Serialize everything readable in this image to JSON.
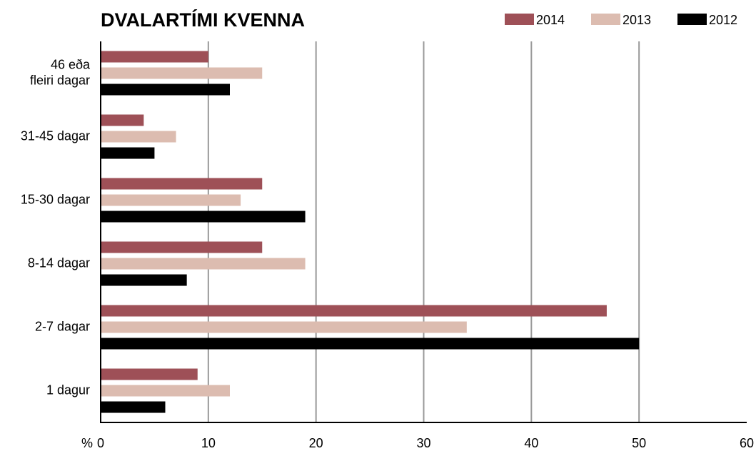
{
  "chart_data": {
    "type": "hbar",
    "title": "DVALARTÍMI KVENNA",
    "categories": [
      "46 eða fleiri dagar",
      "31-45 dagar",
      "15-30 dagar",
      "8-14 dagar",
      "2-7 dagar",
      "1 dagur"
    ],
    "series": [
      {
        "name": "2014",
        "color": "#9e5057",
        "values": [
          10,
          4,
          15,
          15,
          47,
          9
        ]
      },
      {
        "name": "2013",
        "color": "#dcbcb0",
        "values": [
          15,
          7,
          13,
          19,
          34,
          12
        ]
      },
      {
        "name": "2012",
        "color": "#000000",
        "values": [
          12,
          5,
          19,
          8,
          50,
          6
        ]
      }
    ],
    "x_unit": "%",
    "xlim": [
      0,
      60
    ],
    "xticks": [
      0,
      10,
      20,
      30,
      40,
      50,
      60
    ],
    "grid": true,
    "legend": "top-right"
  }
}
